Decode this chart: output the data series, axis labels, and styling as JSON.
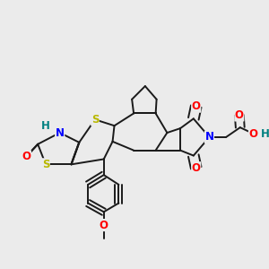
{
  "background_color": "#ebebeb",
  "atom_colors": {
    "S": "#b8b800",
    "N": "#0000ff",
    "O": "#ff0000",
    "H": "#008080",
    "C": "#1a1a1a"
  },
  "bond_color": "#1a1a1a",
  "bond_width": 1.4,
  "figsize": [
    3.0,
    3.0
  ],
  "dpi": 100
}
